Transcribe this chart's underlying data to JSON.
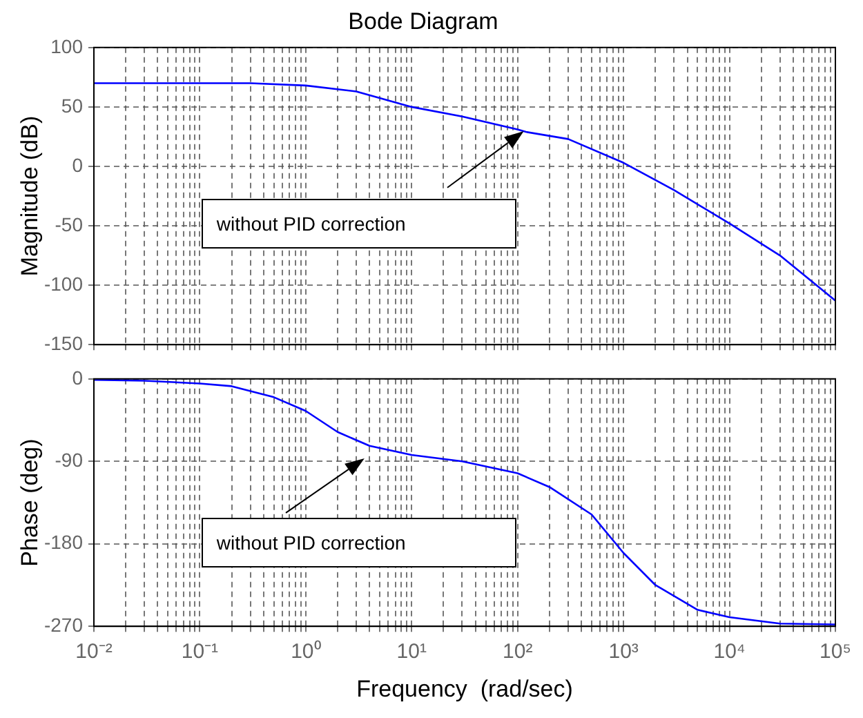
{
  "chart_data": [
    {
      "type": "line",
      "title": "Bode Diagram",
      "ylabel": "Magnitude (dB)",
      "log": "x",
      "grid": true,
      "legend": false,
      "marker": "none",
      "tick_labels": "y",
      "x": [
        0.01,
        0.3,
        1,
        3,
        10,
        30,
        100,
        120,
        300,
        1000,
        3000,
        10000,
        30000,
        100000
      ],
      "series": [
        {
          "color": "#0000ff",
          "values": [
            70,
            70,
            68,
            63,
            50,
            42,
            31,
            29,
            23,
            3,
            -20,
            -48,
            -75,
            -113
          ]
        }
      ],
      "xlim": [
        0.01,
        100000
      ],
      "ylim": [
        -150,
        100
      ],
      "yticks": [
        -150,
        -100,
        -50,
        0,
        50,
        100
      ],
      "xticks": [
        0.01,
        0.02,
        0.03,
        0.04,
        0.05,
        0.06,
        0.07,
        0.08,
        0.09,
        0.1,
        0.2,
        0.3,
        0.4,
        0.5,
        0.6,
        0.7,
        0.8,
        0.9,
        1,
        2,
        3,
        4,
        5,
        6,
        7,
        8,
        9,
        10,
        20,
        30,
        40,
        50,
        60,
        70,
        80,
        90,
        100,
        200,
        300,
        400,
        500,
        600,
        700,
        800,
        900,
        1000,
        2000,
        3000,
        4000,
        5000,
        6000,
        7000,
        8000,
        9000,
        10000,
        20000,
        30000,
        40000,
        50000,
        60000,
        70000,
        80000,
        90000,
        100000
      ],
      "annotations": [
        "without PID correction"
      ]
    },
    {
      "type": "line",
      "ylabel": "Phase (deg)",
      "xlabel": "Frequency  (rad/sec)",
      "log": "x",
      "grid": true,
      "legend": false,
      "marker": "none",
      "x": [
        0.01,
        0.03,
        0.1,
        0.2,
        0.5,
        1,
        2,
        4,
        10,
        30,
        100,
        200,
        500,
        1000,
        2000,
        5000,
        10000,
        30000,
        100000
      ],
      "series": [
        {
          "color": "#0000ff",
          "values": [
            -1,
            -2,
            -5,
            -8,
            -20,
            -35,
            -58,
            -73,
            -83,
            -90,
            -103,
            -118,
            -148,
            -190,
            -225,
            -252,
            -260,
            -267,
            -268
          ]
        }
      ],
      "xlim": [
        0.01,
        100000
      ],
      "ylim": [
        -270,
        0
      ],
      "yticks": [
        -270,
        -180,
        -90,
        0
      ],
      "xticks": [
        {
          "value": 0.01,
          "label": "10⁻²"
        },
        {
          "value": 0.02,
          "label": null
        },
        {
          "value": 0.03,
          "label": null
        },
        {
          "value": 0.04,
          "label": null
        },
        {
          "value": 0.05,
          "label": null
        },
        {
          "value": 0.06,
          "label": null
        },
        {
          "value": 0.07,
          "label": null
        },
        {
          "value": 0.08,
          "label": null
        },
        {
          "value": 0.09,
          "label": null
        },
        {
          "value": 0.1,
          "label": "10⁻¹"
        },
        {
          "value": 0.2,
          "label": null
        },
        {
          "value": 0.3,
          "label": null
        },
        {
          "value": 0.4,
          "label": null
        },
        {
          "value": 0.5,
          "label": null
        },
        {
          "value": 0.6,
          "label": null
        },
        {
          "value": 0.7,
          "label": null
        },
        {
          "value": 0.8,
          "label": null
        },
        {
          "value": 0.9,
          "label": null
        },
        {
          "value": 1,
          "label": "10⁰"
        },
        {
          "value": 2,
          "label": null
        },
        {
          "value": 3,
          "label": null
        },
        {
          "value": 4,
          "label": null
        },
        {
          "value": 5,
          "label": null
        },
        {
          "value": 6,
          "label": null
        },
        {
          "value": 7,
          "label": null
        },
        {
          "value": 8,
          "label": null
        },
        {
          "value": 9,
          "label": null
        },
        {
          "value": 10,
          "label": "10¹"
        },
        {
          "value": 20,
          "label": null
        },
        {
          "value": 30,
          "label": null
        },
        {
          "value": 40,
          "label": null
        },
        {
          "value": 50,
          "label": null
        },
        {
          "value": 60,
          "label": null
        },
        {
          "value": 70,
          "label": null
        },
        {
          "value": 80,
          "label": null
        },
        {
          "value": 90,
          "label": null
        },
        {
          "value": 100,
          "label": "10²"
        },
        {
          "value": 200,
          "label": null
        },
        {
          "value": 300,
          "label": null
        },
        {
          "value": 400,
          "label": null
        },
        {
          "value": 500,
          "label": null
        },
        {
          "value": 600,
          "label": null
        },
        {
          "value": 700,
          "label": null
        },
        {
          "value": 800,
          "label": null
        },
        {
          "value": 900,
          "label": null
        },
        {
          "value": 1000,
          "label": "10³"
        },
        {
          "value": 2000,
          "label": null
        },
        {
          "value": 3000,
          "label": null
        },
        {
          "value": 4000,
          "label": null
        },
        {
          "value": 5000,
          "label": null
        },
        {
          "value": 6000,
          "label": null
        },
        {
          "value": 7000,
          "label": null
        },
        {
          "value": 8000,
          "label": null
        },
        {
          "value": 9000,
          "label": null
        },
        {
          "value": 10000,
          "label": "10⁴"
        },
        {
          "value": 20000,
          "label": null
        },
        {
          "value": 30000,
          "label": null
        },
        {
          "value": 40000,
          "label": null
        },
        {
          "value": 50000,
          "label": null
        },
        {
          "value": 60000,
          "label": null
        },
        {
          "value": 70000,
          "label": null
        },
        {
          "value": 80000,
          "label": null
        },
        {
          "value": 90000,
          "label": null
        },
        {
          "value": 100000,
          "label": "10⁵"
        }
      ],
      "annotations": [
        "without PID correction"
      ]
    }
  ]
}
